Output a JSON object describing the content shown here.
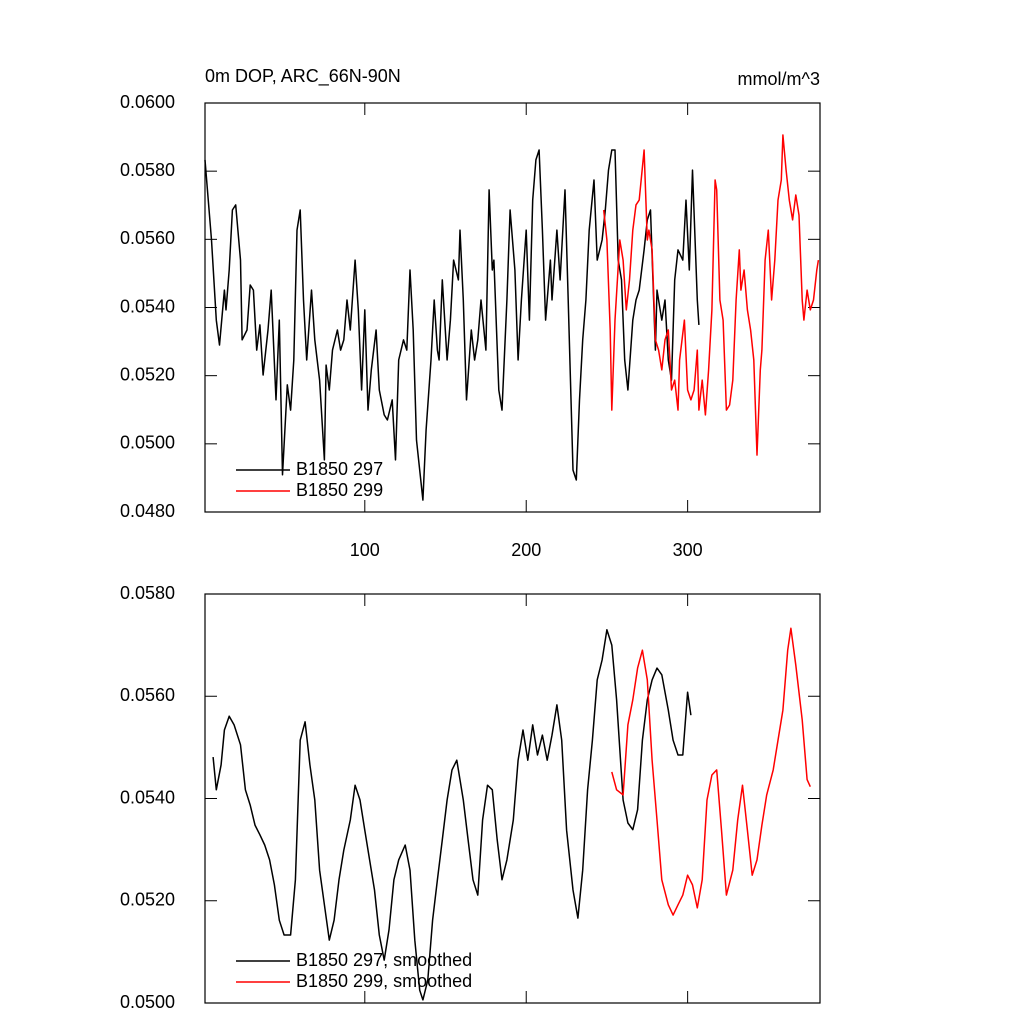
{
  "chart_data": [
    {
      "type": "line",
      "title": "0m DOP, ARC_66N-90N",
      "units": "mmol/m^3",
      "xlim": [
        1,
        382
      ],
      "xticks": [
        100,
        200,
        300
      ],
      "ylim": [
        0.048,
        0.06
      ],
      "yticks": [
        {
          "value": 0.048,
          "label": "0.0480"
        },
        {
          "value": 0.05,
          "label": "0.0500"
        },
        {
          "value": 0.052,
          "label": "0.0520"
        },
        {
          "value": 0.054,
          "label": "0.0540"
        },
        {
          "value": 0.056,
          "label": "0.0560"
        },
        {
          "value": 0.058,
          "label": "0.0580"
        },
        {
          "value": 0.06,
          "label": "0.0600"
        }
      ],
      "series": [
        {
          "name": "B1850 297",
          "color": "#000000",
          "x": [
            1,
            5,
            8,
            10,
            13,
            14,
            16,
            18,
            20,
            23,
            24,
            27,
            29,
            31,
            33,
            35,
            37,
            40,
            42,
            45,
            47,
            49,
            52,
            54,
            56,
            58,
            60,
            62,
            64,
            67,
            69,
            72,
            75,
            76,
            78,
            80,
            83,
            85,
            87,
            89,
            91,
            94,
            96,
            98,
            100,
            102,
            104,
            107,
            109,
            112,
            114,
            117,
            119,
            121,
            124,
            126,
            128,
            130,
            132,
            134,
            136,
            138,
            141,
            143,
            145,
            146,
            148,
            151,
            153,
            155,
            158,
            159,
            161,
            163,
            166,
            168,
            170,
            172,
            175,
            177,
            179,
            180,
            183,
            185,
            188,
            190,
            193,
            195,
            197,
            200,
            202,
            204,
            206,
            208,
            210,
            212,
            215,
            216,
            219,
            221,
            224,
            226,
            229,
            231,
            233,
            235,
            237,
            239,
            242,
            244,
            247,
            249,
            251,
            253,
            255,
            257,
            259,
            261,
            263,
            266,
            268,
            270,
            273,
            275,
            277,
            280,
            281,
            284,
            286,
            288,
            290,
            292,
            294,
            297,
            299,
            301,
            303,
            306,
            307
          ],
          "values": [
            0.05833,
            0.05598,
            0.05363,
            0.0529,
            0.05451,
            0.05393,
            0.0551,
            0.05686,
            0.05701,
            0.05539,
            0.05305,
            0.05334,
            0.05466,
            0.05451,
            0.05275,
            0.05349,
            0.05202,
            0.05334,
            0.05451,
            0.05129,
            0.05363,
            0.04909,
            0.05173,
            0.05099,
            0.05246,
            0.05627,
            0.05686,
            0.05422,
            0.05246,
            0.05451,
            0.05305,
            0.05187,
            0.04953,
            0.05231,
            0.05158,
            0.05275,
            0.05334,
            0.05275,
            0.05305,
            0.05422,
            0.05334,
            0.05539,
            0.05393,
            0.05158,
            0.05393,
            0.05099,
            0.05217,
            0.05334,
            0.05158,
            0.05085,
            0.0507,
            0.05129,
            0.04953,
            0.05246,
            0.05305,
            0.05275,
            0.0551,
            0.05334,
            0.05011,
            0.04923,
            0.04835,
            0.05041,
            0.05246,
            0.05422,
            0.05275,
            0.05246,
            0.05481,
            0.05246,
            0.05363,
            0.05539,
            0.05481,
            0.05627,
            0.05422,
            0.05129,
            0.05334,
            0.05246,
            0.05305,
            0.05422,
            0.05275,
            0.05745,
            0.0551,
            0.05539,
            0.05158,
            0.05099,
            0.05422,
            0.05686,
            0.0551,
            0.05246,
            0.05422,
            0.05627,
            0.05363,
            0.05715,
            0.05833,
            0.05862,
            0.05627,
            0.05363,
            0.05539,
            0.05422,
            0.05627,
            0.05481,
            0.05745,
            0.05422,
            0.04923,
            0.04894,
            0.05129,
            0.05305,
            0.05422,
            0.05627,
            0.05774,
            0.05539,
            0.05598,
            0.05686,
            0.05803,
            0.05862,
            0.05862,
            0.05539,
            0.05481,
            0.05246,
            0.05158,
            0.05363,
            0.05422,
            0.05451,
            0.05569,
            0.05657,
            0.05686,
            0.05275,
            0.05451,
            0.05363,
            0.05422,
            0.05246,
            0.05187,
            0.05481,
            0.05569,
            0.05539,
            0.05715,
            0.0551,
            0.05803,
            0.05422,
            0.05349
          ]
        },
        {
          "name": "B1850 299",
          "color": "#ff0000",
          "x": [
            248,
            250,
            252,
            253,
            255,
            258,
            260,
            262,
            264,
            266,
            268,
            270,
            273,
            275,
            276,
            278,
            280,
            282,
            284,
            286,
            288,
            290,
            292,
            294,
            295,
            298,
            300,
            302,
            304,
            306,
            307,
            309,
            311,
            313,
            315,
            317,
            318,
            320,
            322,
            324,
            326,
            328,
            330,
            332,
            333,
            335,
            337,
            339,
            341,
            343,
            345,
            346,
            348,
            350,
            352,
            354,
            356,
            358,
            359,
            361,
            363,
            365,
            367,
            369,
            371,
            372,
            374,
            376,
            378,
            380,
            381
          ],
          "values": [
            0.05686,
            0.05598,
            0.05334,
            0.05099,
            0.05363,
            0.05598,
            0.05539,
            0.05393,
            0.05481,
            0.05627,
            0.05701,
            0.05715,
            0.05862,
            0.05598,
            0.05627,
            0.05569,
            0.05305,
            0.05275,
            0.05217,
            0.05305,
            0.05334,
            0.05158,
            0.05187,
            0.05099,
            0.05246,
            0.05363,
            0.05158,
            0.05129,
            0.05158,
            0.05275,
            0.05099,
            0.05187,
            0.05085,
            0.05217,
            0.05393,
            0.05774,
            0.05745,
            0.05422,
            0.05363,
            0.05099,
            0.05114,
            0.05187,
            0.05422,
            0.05569,
            0.05451,
            0.0551,
            0.05393,
            0.05334,
            0.05246,
            0.04967,
            0.05217,
            0.05275,
            0.05539,
            0.05627,
            0.05422,
            0.05539,
            0.05715,
            0.05774,
            0.05906,
            0.05803,
            0.05715,
            0.05657,
            0.0573,
            0.05671,
            0.05422,
            0.05363,
            0.05451,
            0.05393,
            0.05422,
            0.0551,
            0.05539
          ]
        }
      ]
    },
    {
      "type": "line",
      "xtick_labels": false,
      "xlim": [
        1,
        382
      ],
      "xticks": [
        100,
        200,
        300
      ],
      "ylim": [
        0.05,
        0.058
      ],
      "yticks": [
        {
          "value": 0.05,
          "label": "0.0500"
        },
        {
          "value": 0.052,
          "label": "0.0520"
        },
        {
          "value": 0.054,
          "label": "0.0540"
        },
        {
          "value": 0.056,
          "label": "0.0560"
        },
        {
          "value": 0.058,
          "label": "0.0580"
        }
      ],
      "series": [
        {
          "name": "B1850 297, smoothed",
          "color": "#000000",
          "x": [
            6,
            8,
            11,
            13,
            16,
            19,
            23,
            26,
            29,
            32,
            35,
            38,
            41,
            44,
            47,
            50,
            54,
            57,
            60,
            63,
            66,
            69,
            72,
            75,
            78,
            81,
            84,
            87,
            91,
            94,
            97,
            100,
            103,
            106,
            109,
            112,
            115,
            118,
            121,
            125,
            128,
            131,
            134,
            136,
            139,
            142,
            145,
            148,
            151,
            154,
            157,
            161,
            164,
            167,
            170,
            173,
            176,
            179,
            182,
            185,
            188,
            192,
            195,
            198,
            201,
            204,
            207,
            210,
            213,
            216,
            219,
            222,
            225,
            229,
            232,
            235,
            238,
            241,
            244,
            247,
            250,
            253,
            256,
            260,
            263,
            266,
            269,
            272,
            275,
            278,
            281,
            284,
            288,
            291,
            294,
            297,
            300,
            302
          ],
          "values": [
            0.05481,
            0.05417,
            0.05466,
            0.05534,
            0.05561,
            0.05544,
            0.05505,
            0.05417,
            0.05387,
            0.05348,
            0.05329,
            0.05309,
            0.0528,
            0.05231,
            0.05162,
            0.05133,
            0.05133,
            0.05241,
            0.05514,
            0.0555,
            0.05466,
            0.05397,
            0.0526,
            0.05192,
            0.05123,
            0.05162,
            0.05241,
            0.05299,
            0.05358,
            0.05426,
            0.05397,
            0.05338,
            0.0528,
            0.05221,
            0.05133,
            0.05084,
            0.05143,
            0.05241,
            0.0528,
            0.05309,
            0.0526,
            0.05123,
            0.05025,
            0.05006,
            0.05045,
            0.05162,
            0.05241,
            0.05319,
            0.05397,
            0.05456,
            0.05475,
            0.05397,
            0.05319,
            0.05241,
            0.05211,
            0.05358,
            0.05426,
            0.05417,
            0.05319,
            0.05241,
            0.0528,
            0.05358,
            0.05475,
            0.05534,
            0.05475,
            0.05544,
            0.05485,
            0.05524,
            0.05475,
            0.05524,
            0.05583,
            0.05514,
            0.05338,
            0.05221,
            0.05166,
            0.0526,
            0.05417,
            0.05514,
            0.05632,
            0.05671,
            0.0573,
            0.057,
            0.05593,
            0.05397,
            0.05352,
            0.05339,
            0.05378,
            0.05514,
            0.05593,
            0.05632,
            0.05655,
            0.05642,
            0.05573,
            0.05514,
            0.05485,
            0.05485,
            0.05608,
            0.05563
          ]
        },
        {
          "name": "B1850 299, smoothed",
          "color": "#ff0000",
          "x": [
            253,
            256,
            260,
            263,
            266,
            269,
            272,
            275,
            278,
            281,
            284,
            288,
            291,
            294,
            297,
            300,
            303,
            306,
            309,
            312,
            315,
            318,
            321,
            324,
            328,
            331,
            334,
            337,
            340,
            343,
            346,
            349,
            353,
            356,
            359,
            362,
            364,
            367,
            371,
            374,
            376
          ],
          "values": [
            0.05452,
            0.05417,
            0.05407,
            0.05544,
            0.05593,
            0.05655,
            0.0569,
            0.05632,
            0.05475,
            0.05358,
            0.05241,
            0.05192,
            0.05172,
            0.05192,
            0.05211,
            0.0525,
            0.05231,
            0.05186,
            0.05241,
            0.05397,
            0.05446,
            0.05456,
            0.05338,
            0.05211,
            0.0526,
            0.05358,
            0.05426,
            0.05338,
            0.0525,
            0.0528,
            0.05348,
            0.05407,
            0.05456,
            0.05514,
            0.05573,
            0.0569,
            0.05733,
            0.05661,
            0.05554,
            0.05437,
            0.05423
          ]
        }
      ]
    }
  ]
}
